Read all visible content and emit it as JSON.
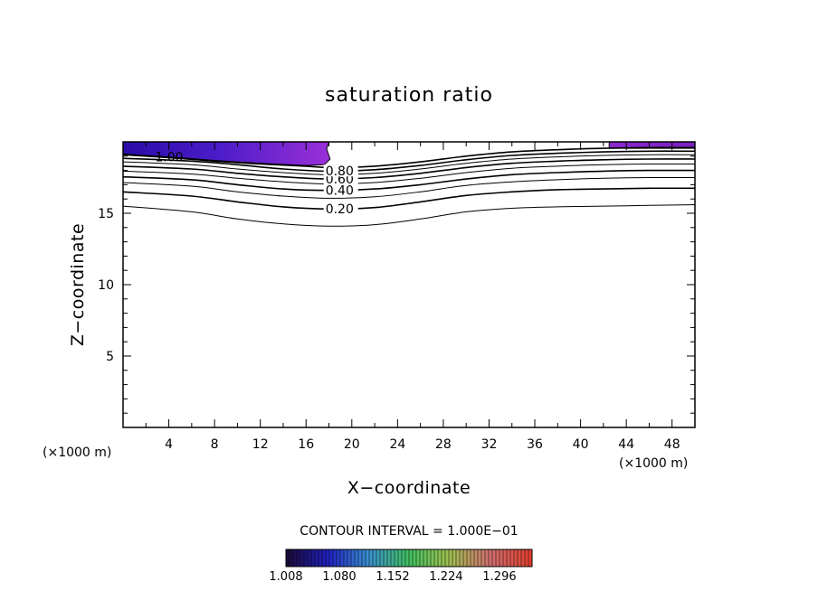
{
  "chart_data": {
    "type": "contour",
    "title": "saturation ratio",
    "xlabel": "X−coordinate",
    "ylabel": "Z−coordinate",
    "x_unit": "(×1000 m)",
    "y_unit": "(×1000 m)",
    "xlim": [
      0,
      50
    ],
    "ylim": [
      0,
      20
    ],
    "x_ticks": [
      4,
      8,
      12,
      16,
      20,
      24,
      28,
      32,
      36,
      40,
      44,
      48
    ],
    "y_ticks": [
      5,
      10,
      15
    ],
    "contour_interval_text": "CONTOUR INTERVAL = 1.000E−01",
    "colorbar": {
      "ticks": [
        "1.008",
        "1.080",
        "1.152",
        "1.224",
        "1.296"
      ],
      "range": [
        1.008,
        1.34
      ],
      "colors": [
        "#1a0a3a",
        "#2020c0",
        "#3a90d0",
        "#40c060",
        "#a0c050",
        "#d07070",
        "#e04030"
      ]
    },
    "contours": [
      {
        "level": 0.1,
        "points": [
          [
            0,
            15.5
          ],
          [
            6,
            15.1
          ],
          [
            10,
            14.6
          ],
          [
            14,
            14.25
          ],
          [
            18,
            14.1
          ],
          [
            22,
            14.2
          ],
          [
            26,
            14.6
          ],
          [
            30,
            15.1
          ],
          [
            34,
            15.35
          ],
          [
            38,
            15.45
          ],
          [
            42,
            15.5
          ],
          [
            46,
            15.55
          ],
          [
            50,
            15.6
          ]
        ]
      },
      {
        "level": 0.2,
        "label": "0.20",
        "label_x": 17.7,
        "points": [
          [
            0,
            16.5
          ],
          [
            6,
            16.2
          ],
          [
            10,
            15.8
          ],
          [
            14,
            15.45
          ],
          [
            18,
            15.3
          ],
          [
            22,
            15.4
          ],
          [
            26,
            15.8
          ],
          [
            30,
            16.25
          ],
          [
            34,
            16.5
          ],
          [
            38,
            16.65
          ],
          [
            42,
            16.7
          ],
          [
            46,
            16.75
          ],
          [
            50,
            16.75
          ]
        ]
      },
      {
        "level": 0.3,
        "points": [
          [
            0,
            17.15
          ],
          [
            6,
            16.9
          ],
          [
            10,
            16.5
          ],
          [
            14,
            16.2
          ],
          [
            18,
            16.05
          ],
          [
            22,
            16.15
          ],
          [
            26,
            16.5
          ],
          [
            30,
            16.95
          ],
          [
            34,
            17.2
          ],
          [
            38,
            17.35
          ],
          [
            42,
            17.45
          ],
          [
            46,
            17.5
          ],
          [
            50,
            17.5
          ]
        ]
      },
      {
        "level": 0.4,
        "label": "0.40",
        "label_x": 17.7,
        "points": [
          [
            0,
            17.55
          ],
          [
            6,
            17.35
          ],
          [
            10,
            17.0
          ],
          [
            14,
            16.7
          ],
          [
            18,
            16.6
          ],
          [
            22,
            16.7
          ],
          [
            26,
            17.0
          ],
          [
            30,
            17.4
          ],
          [
            34,
            17.7
          ],
          [
            38,
            17.85
          ],
          [
            42,
            17.95
          ],
          [
            46,
            18.0
          ],
          [
            50,
            18.0
          ]
        ]
      },
      {
        "level": 0.5,
        "points": [
          [
            0,
            17.95
          ],
          [
            6,
            17.75
          ],
          [
            10,
            17.45
          ],
          [
            14,
            17.2
          ],
          [
            18,
            17.05
          ],
          [
            22,
            17.15
          ],
          [
            26,
            17.45
          ],
          [
            30,
            17.85
          ],
          [
            34,
            18.15
          ],
          [
            38,
            18.3
          ],
          [
            42,
            18.4
          ],
          [
            46,
            18.45
          ],
          [
            50,
            18.45
          ]
        ]
      },
      {
        "level": 0.6,
        "label": "0.60",
        "label_x": 17.7,
        "points": [
          [
            0,
            18.3
          ],
          [
            6,
            18.1
          ],
          [
            10,
            17.8
          ],
          [
            14,
            17.55
          ],
          [
            18,
            17.4
          ],
          [
            22,
            17.5
          ],
          [
            26,
            17.8
          ],
          [
            30,
            18.2
          ],
          [
            34,
            18.5
          ],
          [
            38,
            18.65
          ],
          [
            42,
            18.75
          ],
          [
            46,
            18.8
          ],
          [
            50,
            18.8
          ]
        ]
      },
      {
        "level": 0.7,
        "points": [
          [
            0,
            18.6
          ],
          [
            6,
            18.4
          ],
          [
            10,
            18.1
          ],
          [
            14,
            17.85
          ],
          [
            18,
            17.7
          ],
          [
            22,
            17.8
          ],
          [
            26,
            18.1
          ],
          [
            30,
            18.5
          ],
          [
            34,
            18.8
          ],
          [
            38,
            18.95
          ],
          [
            42,
            19.05
          ],
          [
            46,
            19.1
          ],
          [
            50,
            19.1
          ]
        ]
      },
      {
        "level": 0.8,
        "label": "0.80",
        "label_x": 17.7,
        "points": [
          [
            0,
            18.85
          ],
          [
            6,
            18.65
          ],
          [
            10,
            18.4
          ],
          [
            14,
            18.1
          ],
          [
            18,
            17.95
          ],
          [
            22,
            18.05
          ],
          [
            26,
            18.35
          ],
          [
            30,
            18.75
          ],
          [
            34,
            19.05
          ],
          [
            38,
            19.2
          ],
          [
            42,
            19.3
          ],
          [
            46,
            19.35
          ],
          [
            50,
            19.35
          ]
        ]
      },
      {
        "level": 1.0,
        "label": "1.00",
        "label_x": 2.8,
        "points": [
          [
            0,
            19.1
          ],
          [
            4,
            18.9
          ],
          [
            8,
            18.65
          ],
          [
            12,
            18.45
          ],
          [
            16,
            18.3
          ],
          [
            18,
            18.2
          ],
          [
            22,
            18.3
          ],
          [
            26,
            18.6
          ],
          [
            30,
            19.0
          ],
          [
            34,
            19.3
          ],
          [
            38,
            19.45
          ],
          [
            42,
            19.55
          ],
          [
            46,
            19.6
          ],
          [
            50,
            19.6
          ]
        ]
      }
    ],
    "fill_regions": [
      {
        "name": "supersaturated-left",
        "points": [
          [
            0,
            20
          ],
          [
            18,
            20
          ],
          [
            17.8,
            19.5
          ],
          [
            18.1,
            18.8
          ],
          [
            17.6,
            18.4
          ],
          [
            16,
            18.35
          ],
          [
            12,
            18.5
          ],
          [
            8,
            18.7
          ],
          [
            4,
            18.95
          ],
          [
            0,
            19.15
          ]
        ]
      },
      {
        "name": "supersaturated-right",
        "points": [
          [
            42.5,
            20
          ],
          [
            50,
            20
          ],
          [
            50,
            19.55
          ],
          [
            42.5,
            19.55
          ]
        ]
      }
    ]
  }
}
